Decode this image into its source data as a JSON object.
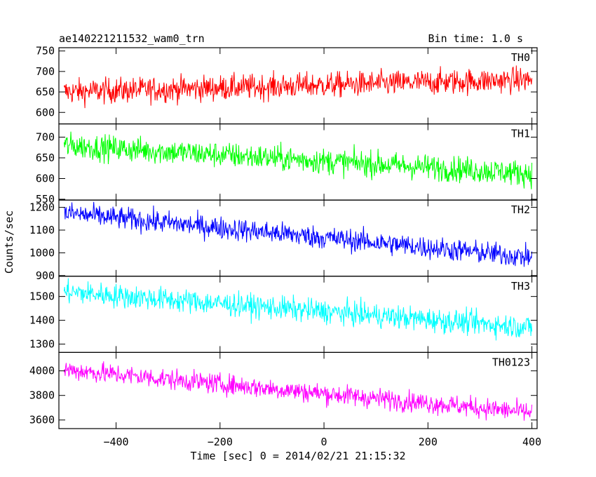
{
  "chart_data": {
    "type": "line",
    "title": "ae140221211532_wam0_trn",
    "bin_time_label": "Bin time: 1.0 s",
    "xlabel": "Time [sec] 0 = 2014/02/21 21:15:32",
    "ylabel": "Counts/sec",
    "xlim": [
      -510,
      410
    ],
    "x_ticks": [
      -400,
      -200,
      0,
      200,
      400
    ],
    "x_tick_labels": [
      "−400",
      "−200",
      "0",
      "200",
      "400"
    ],
    "panels": [
      {
        "name": "TH0",
        "color": "#ff0000",
        "ylim": [
          572,
          758
        ],
        "y_ticks": [
          600,
          650,
          700,
          750
        ],
        "y_tick_labels": [
          "600",
          "650",
          "700",
          "750"
        ],
        "start_value": 650,
        "end_value": 680,
        "noise_amplitude": 28,
        "x_start": -500,
        "x_end": 400
      },
      {
        "name": "TH1",
        "color": "#00ff00",
        "ylim": [
          548,
          732
        ],
        "y_ticks": [
          550,
          600,
          650,
          700
        ],
        "y_tick_labels": [
          "550",
          "600",
          "650",
          "700"
        ],
        "start_value": 680,
        "end_value": 612,
        "noise_amplitude": 28,
        "x_start": -500,
        "x_end": 400
      },
      {
        "name": "TH2",
        "color": "#0000ff",
        "ylim": [
          897,
          1232
        ],
        "y_ticks": [
          900,
          1000,
          1100,
          1200
        ],
        "y_tick_labels": [
          "900",
          "1000",
          "1100",
          "1200"
        ],
        "start_value": 1175,
        "end_value": 980,
        "noise_amplitude": 45,
        "x_start": -500,
        "x_end": 400
      },
      {
        "name": "TH3",
        "color": "#00ffff",
        "ylim": [
          1265,
          1585
        ],
        "y_ticks": [
          1300,
          1400,
          1500
        ],
        "y_tick_labels": [
          "1300",
          "1400",
          "1500"
        ],
        "start_value": 1520,
        "end_value": 1370,
        "noise_amplitude": 45,
        "x_start": -500,
        "x_end": 400
      },
      {
        "name": "TH0123",
        "color": "#ff00ff",
        "ylim": [
          3530,
          4150
        ],
        "y_ticks": [
          3600,
          3800,
          4000
        ],
        "y_tick_labels": [
          "3600",
          "3800",
          "4000"
        ],
        "start_value": 4010,
        "end_value": 3660,
        "noise_amplitude": 75,
        "x_start": -500,
        "x_end": 400
      }
    ]
  }
}
